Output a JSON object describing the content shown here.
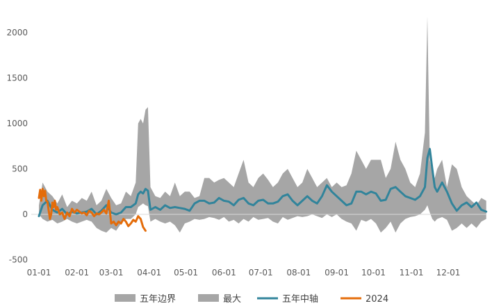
{
  "chart_data": {
    "type": "area",
    "title": "",
    "xlabel": "",
    "ylabel": "",
    "ylim": [
      -500,
      2200
    ],
    "y_ticks": [
      "2000",
      "1500",
      "1000",
      "500",
      "0",
      "-500"
    ],
    "y_tick_values": [
      2000,
      1500,
      1000,
      500,
      0,
      -500
    ],
    "x_ticks": [
      "01-01",
      "02-01",
      "03-01",
      "04-01",
      "05-01",
      "06-01",
      "07-01",
      "08-01",
      "09-01",
      "10-01",
      "11-01",
      "12-01"
    ],
    "x_tick_days": [
      1,
      32,
      60,
      91,
      121,
      152,
      182,
      213,
      244,
      274,
      305,
      335
    ],
    "xlim_days": [
      1,
      366
    ],
    "grid": false,
    "legend_position": "bottom",
    "colors": {
      "band": "#a6a6a6",
      "max": "#a6a6a6",
      "median": "#31849b",
      "current": "#e46c0a"
    },
    "legend": [
      {
        "label": "五年边界",
        "kind": "area",
        "color": "#a6a6a6"
      },
      {
        "label": "最大",
        "kind": "area",
        "color": "#a6a6a6"
      },
      {
        "label": "五年中轴",
        "kind": "line",
        "color": "#31849b"
      },
      {
        "label": "2024",
        "kind": "line",
        "color": "#e46c0a"
      }
    ],
    "series": [
      {
        "name": "五年边界",
        "type": "area-band",
        "days": [
          1,
          4,
          8,
          12,
          16,
          20,
          24,
          28,
          32,
          36,
          40,
          44,
          48,
          52,
          56,
          60,
          64,
          68,
          72,
          76,
          80,
          82,
          84,
          86,
          88,
          90,
          92,
          96,
          100,
          104,
          108,
          112,
          116,
          120,
          124,
          128,
          132,
          136,
          140,
          144,
          148,
          152,
          156,
          160,
          164,
          168,
          172,
          176,
          180,
          184,
          188,
          192,
          196,
          200,
          204,
          208,
          212,
          216,
          220,
          224,
          228,
          232,
          236,
          240,
          244,
          248,
          252,
          256,
          260,
          264,
          268,
          272,
          276,
          280,
          284,
          288,
          292,
          296,
          300,
          304,
          308,
          312,
          316,
          318,
          320,
          322,
          324,
          326,
          330,
          334,
          338,
          342,
          346,
          350,
          354,
          358,
          362,
          366
        ],
        "high": [
          100,
          350,
          250,
          200,
          120,
          220,
          80,
          150,
          120,
          180,
          150,
          250,
          100,
          150,
          280,
          180,
          100,
          120,
          250,
          200,
          350,
          1000,
          1050,
          1000,
          1150,
          1180,
          300,
          200,
          180,
          250,
          200,
          350,
          200,
          250,
          250,
          180,
          200,
          400,
          400,
          350,
          380,
          400,
          350,
          300,
          450,
          600,
          350,
          300,
          400,
          450,
          380,
          300,
          350,
          450,
          500,
          400,
          300,
          350,
          500,
          400,
          300,
          350,
          400,
          300,
          350,
          300,
          320,
          450,
          700,
          600,
          500,
          600,
          600,
          600,
          400,
          500,
          800,
          600,
          500,
          350,
          300,
          450,
          900,
          2180,
          600,
          450,
          400,
          500,
          600,
          300,
          550,
          500,
          300,
          200,
          150,
          100,
          180,
          150
        ],
        "low": [
          0,
          -50,
          -80,
          -60,
          -100,
          -80,
          -50,
          -80,
          -100,
          -80,
          -60,
          -80,
          -150,
          -180,
          -200,
          -150,
          -180,
          -100,
          -50,
          -50,
          0,
          80,
          100,
          120,
          100,
          90,
          -80,
          -50,
          -80,
          -100,
          -80,
          -120,
          -200,
          -100,
          -80,
          -50,
          -60,
          -50,
          -30,
          -40,
          -60,
          -30,
          -80,
          -60,
          -100,
          -50,
          -80,
          -30,
          -60,
          -50,
          -40,
          -80,
          -100,
          -30,
          -60,
          -40,
          -20,
          -30,
          -20,
          0,
          -20,
          -40,
          0,
          -30,
          0,
          -50,
          -80,
          -100,
          -180,
          -60,
          -80,
          -50,
          -100,
          -200,
          -150,
          -80,
          -200,
          -100,
          -50,
          -30,
          -20,
          0,
          50,
          100,
          20,
          -50,
          -80,
          -50,
          -30,
          -60,
          -180,
          -150,
          -100,
          -150,
          -100,
          -150,
          -80,
          -50
        ]
      },
      {
        "name": "五年中轴",
        "type": "line",
        "days": [
          1,
          4,
          8,
          12,
          16,
          20,
          24,
          28,
          32,
          36,
          40,
          44,
          48,
          52,
          56,
          60,
          64,
          68,
          72,
          76,
          80,
          82,
          84,
          86,
          88,
          90,
          92,
          96,
          100,
          104,
          108,
          112,
          116,
          120,
          124,
          128,
          132,
          136,
          140,
          144,
          148,
          152,
          156,
          160,
          164,
          168,
          172,
          176,
          180,
          184,
          188,
          192,
          196,
          200,
          204,
          208,
          212,
          216,
          220,
          224,
          228,
          232,
          236,
          240,
          244,
          248,
          252,
          256,
          260,
          264,
          268,
          272,
          276,
          280,
          284,
          288,
          292,
          296,
          300,
          304,
          308,
          312,
          316,
          318,
          320,
          322,
          324,
          326,
          330,
          334,
          338,
          342,
          346,
          350,
          354,
          358,
          362,
          366
        ],
        "values": [
          -20,
          100,
          150,
          50,
          20,
          60,
          0,
          30,
          10,
          20,
          30,
          60,
          0,
          40,
          100,
          20,
          0,
          20,
          80,
          80,
          120,
          220,
          250,
          230,
          280,
          260,
          50,
          80,
          50,
          100,
          70,
          80,
          70,
          60,
          40,
          120,
          150,
          150,
          120,
          130,
          180,
          150,
          140,
          100,
          160,
          180,
          120,
          100,
          150,
          160,
          120,
          120,
          140,
          200,
          220,
          150,
          100,
          150,
          200,
          150,
          120,
          200,
          320,
          250,
          200,
          150,
          100,
          120,
          250,
          250,
          220,
          250,
          230,
          150,
          160,
          280,
          300,
          250,
          200,
          180,
          160,
          200,
          300,
          620,
          720,
          500,
          300,
          250,
          350,
          250,
          120,
          40,
          100,
          130,
          80,
          130,
          50,
          30
        ]
      },
      {
        "name": "2024",
        "type": "line",
        "days": [
          1,
          2,
          3,
          4,
          5,
          6,
          7,
          8,
          9,
          10,
          11,
          12,
          13,
          14,
          15,
          16,
          18,
          20,
          22,
          24,
          26,
          28,
          30,
          32,
          34,
          36,
          38,
          40,
          42,
          44,
          46,
          48,
          50,
          52,
          54,
          56,
          58,
          60,
          62,
          64,
          66,
          68,
          70,
          72,
          74,
          76,
          78,
          80,
          82,
          84,
          86,
          88
        ],
        "values": [
          180,
          270,
          150,
          280,
          200,
          260,
          150,
          140,
          40,
          -50,
          0,
          130,
          80,
          150,
          50,
          80,
          0,
          20,
          -50,
          20,
          -20,
          60,
          20,
          50,
          30,
          10,
          20,
          -10,
          40,
          20,
          -20,
          10,
          0,
          20,
          50,
          10,
          150,
          -100,
          -80,
          -120,
          -80,
          -100,
          -50,
          -80,
          -130,
          -100,
          -60,
          -80,
          -20,
          -50,
          -140,
          -180
        ]
      }
    ]
  }
}
